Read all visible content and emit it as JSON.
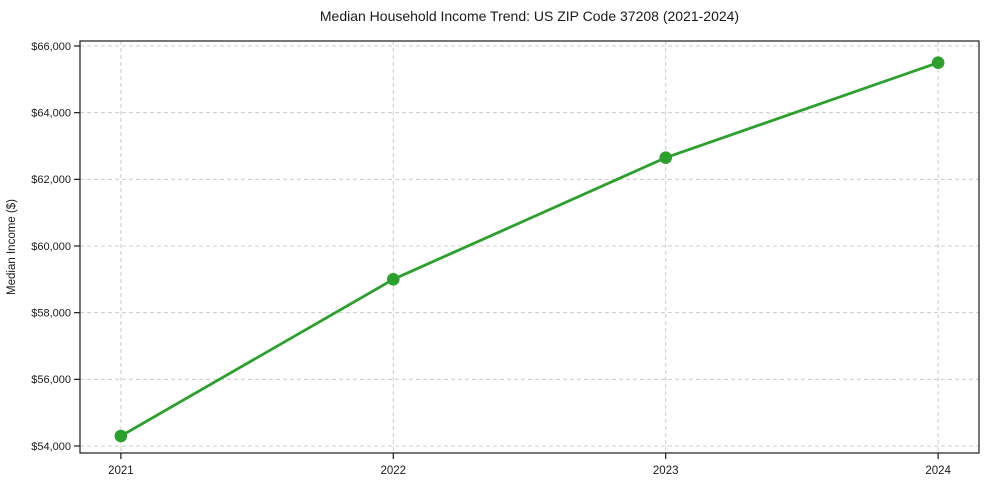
{
  "chart_data": {
    "type": "line",
    "title": "Median Household Income Trend: US ZIP Code 37208 (2021-2024)",
    "xlabel": "",
    "ylabel": "Median Income ($)",
    "x": [
      2021,
      2022,
      2023,
      2024
    ],
    "x_tick_labels": [
      "2021",
      "2022",
      "2023",
      "2024"
    ],
    "series": [
      {
        "values": [
          54300,
          59000,
          62650,
          65500
        ],
        "color": "#2ca02c",
        "marker": "circle"
      }
    ],
    "y_ticks": [
      {
        "value": 54000,
        "label": "$54,000"
      },
      {
        "value": 56000,
        "label": "$56,000"
      },
      {
        "value": 58000,
        "label": "$58,000"
      },
      {
        "value": 60000,
        "label": "$60,000"
      },
      {
        "value": 62000,
        "label": "$62,000"
      },
      {
        "value": 64000,
        "label": "$64,000"
      },
      {
        "value": 66000,
        "label": "$66,000"
      }
    ],
    "xlim": [
      2020.85,
      2024.15
    ],
    "ylim": [
      53790,
      66150
    ],
    "grid": {
      "show": true,
      "style": "dashed",
      "color": "#cccccc"
    },
    "axis_color": "#1a1a1a",
    "background": "#ffffff",
    "legend": null
  }
}
